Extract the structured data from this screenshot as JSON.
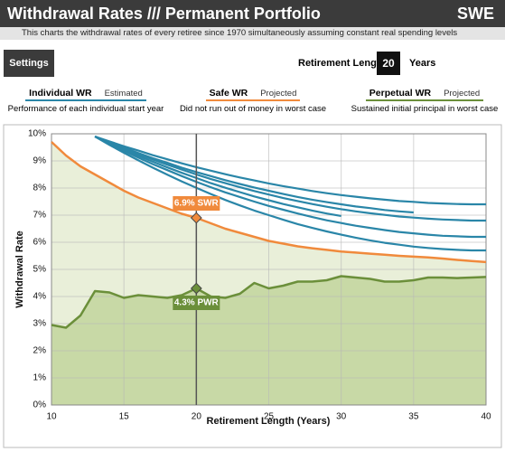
{
  "header": {
    "title": "Withdrawal Rates /// Permanent Portfolio",
    "badge": "SWE",
    "subtitle": "This charts the withdrawal rates of every retiree since 1970 simultaneously assuming constant real spending levels"
  },
  "controls": {
    "button": "Settings",
    "label": "Retirement Length",
    "value": 20,
    "unit": "Years"
  },
  "chart_data": {
    "type": "line",
    "xlabel": "Retirement Length (Years)",
    "ylabel": "Withdrawal Rate",
    "x": [
      10,
      11,
      12,
      13,
      14,
      15,
      16,
      17,
      18,
      19,
      20,
      21,
      22,
      23,
      24,
      25,
      26,
      27,
      28,
      29,
      30,
      31,
      32,
      33,
      34,
      35,
      36,
      37,
      38,
      39,
      40
    ],
    "xlim": [
      10,
      40
    ],
    "xticks": [
      10,
      15,
      20,
      25,
      30,
      35,
      40
    ],
    "ylim": [
      0,
      10
    ],
    "yticks": [
      {
        "value": 0,
        "label": "0%"
      },
      {
        "value": 1,
        "label": "1%"
      },
      {
        "value": 2,
        "label": "2%"
      },
      {
        "value": 3,
        "label": "3%"
      },
      {
        "value": 4,
        "label": "4%"
      },
      {
        "value": 5,
        "label": "5%"
      },
      {
        "value": 6,
        "label": "6%"
      },
      {
        "value": 7,
        "label": "7%"
      },
      {
        "value": 8,
        "label": "8%"
      },
      {
        "value": 9,
        "label": "9%"
      },
      {
        "value": 10,
        "label": "10%"
      }
    ],
    "grid": true,
    "series": [
      {
        "name": "Individual WR",
        "tag": "Estimated",
        "description": "Performance of each individual start year",
        "color": "#2a86a8",
        "lines": [
          [
            null,
            null,
            null,
            9.9,
            9.72,
            9.54,
            9.38,
            9.21,
            9.06,
            8.91,
            8.77,
            8.64,
            8.51,
            8.39,
            8.28,
            8.17,
            8.07,
            7.98,
            7.89,
            7.81,
            7.74,
            7.68,
            7.62,
            7.57,
            7.52,
            7.49,
            7.45,
            7.43,
            7.41,
            7.4,
            7.4
          ],
          [
            null,
            null,
            null,
            9.9,
            9.69,
            9.49,
            9.29,
            9.1,
            8.93,
            8.75,
            8.59,
            8.44,
            8.29,
            8.15,
            8.02,
            7.9,
            7.78,
            7.67,
            7.57,
            7.48,
            7.4,
            7.32,
            7.26,
            7.19,
            7.14,
            7.1,
            null,
            null,
            null,
            null,
            null
          ],
          [
            null,
            null,
            null,
            9.9,
            9.67,
            9.46,
            9.25,
            9.05,
            8.86,
            8.68,
            8.5,
            8.33,
            8.18,
            8.03,
            7.89,
            7.76,
            7.63,
            7.52,
            7.41,
            7.31,
            7.22,
            7.14,
            7.07,
            7.01,
            6.95,
            6.91,
            6.87,
            6.84,
            6.82,
            6.8,
            6.8
          ],
          [
            null,
            null,
            null,
            9.9,
            9.65,
            9.41,
            9.19,
            8.97,
            8.76,
            8.56,
            8.37,
            8.18,
            8.01,
            7.85,
            7.69,
            7.55,
            7.41,
            7.29,
            7.17,
            7.06,
            6.97,
            null,
            null,
            null,
            null,
            null,
            null,
            null,
            null,
            null,
            null
          ],
          [
            null,
            null,
            null,
            9.9,
            9.63,
            9.37,
            9.12,
            8.88,
            8.66,
            8.44,
            8.23,
            8.03,
            7.84,
            7.67,
            7.5,
            7.34,
            7.2,
            7.06,
            6.93,
            6.81,
            6.71,
            6.61,
            6.53,
            6.45,
            6.38,
            6.33,
            6.28,
            6.24,
            6.22,
            6.2,
            6.2
          ],
          [
            null,
            null,
            null,
            9.9,
            9.59,
            9.3,
            9.02,
            8.75,
            8.49,
            8.24,
            8.01,
            7.78,
            7.56,
            7.36,
            7.17,
            7,
            6.83,
            6.67,
            6.53,
            6.4,
            6.28,
            6.17,
            6.07,
            5.98,
            5.91,
            5.84,
            5.79,
            5.75,
            5.72,
            5.7,
            5.7
          ]
        ]
      },
      {
        "name": "Safe WR",
        "tag": "Projected",
        "description": "Did not run out of money in worst case",
        "color": "#f08a3c",
        "fill": "#e9efd9",
        "values": [
          9.7,
          9.2,
          8.8,
          8.5,
          8.2,
          7.9,
          7.65,
          7.45,
          7.25,
          7.05,
          6.9,
          6.7,
          6.5,
          6.35,
          6.2,
          6.05,
          5.95,
          5.85,
          5.78,
          5.72,
          5.66,
          5.62,
          5.58,
          5.54,
          5.5,
          5.47,
          5.44,
          5.4,
          5.35,
          5.31,
          5.27
        ]
      },
      {
        "name": "Perpetual WR",
        "tag": "Projected",
        "description": "Sustained initial principal in worst case",
        "color": "#6b8f3a",
        "fill": "#c8d9a6",
        "values": [
          2.95,
          2.85,
          3.3,
          4.2,
          4.15,
          3.95,
          4.05,
          4,
          3.95,
          4.05,
          4.3,
          4,
          3.95,
          4.1,
          4.5,
          4.3,
          4.4,
          4.55,
          4.55,
          4.6,
          4.75,
          4.7,
          4.65,
          4.55,
          4.55,
          4.6,
          4.7,
          4.7,
          4.68,
          4.7,
          4.72
        ]
      }
    ],
    "annotations": [
      {
        "x": 20,
        "y": 6.9,
        "label": "6.9% SWR",
        "color": "#f08a3c"
      },
      {
        "x": 20,
        "y": 4.3,
        "label": "4.3% PWR",
        "color": "#6b8f3a"
      }
    ]
  }
}
